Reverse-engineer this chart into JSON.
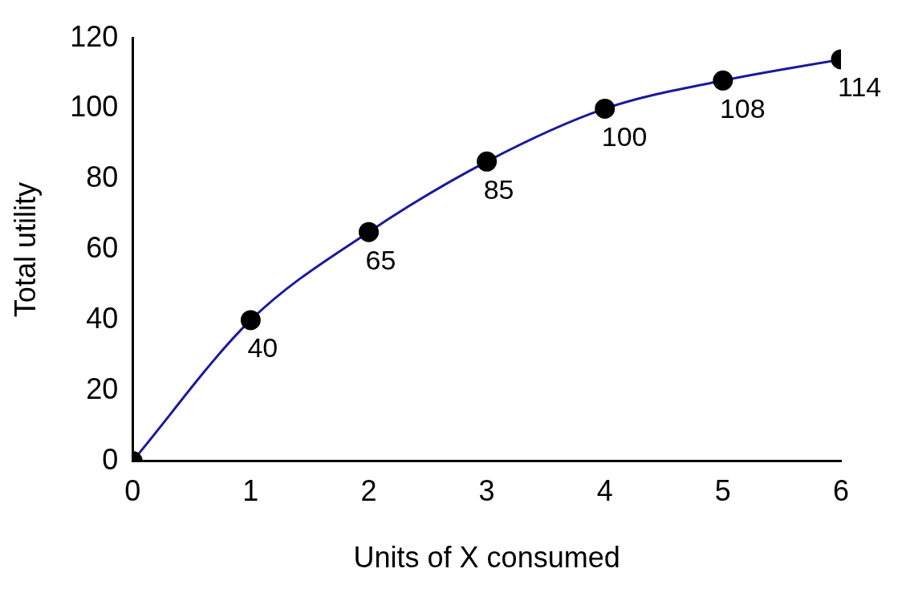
{
  "chart_data": {
    "type": "line",
    "xlabel": "Units of X consumed",
    "ylabel": "Total utility",
    "x": [
      0,
      1,
      2,
      3,
      4,
      5,
      6
    ],
    "series": [
      {
        "color": "#1a1a9c",
        "values": [
          0,
          40,
          65,
          85,
          100,
          108,
          114
        ],
        "value_labels": [
          null,
          "40",
          "65",
          "85",
          "100",
          "108",
          "114"
        ]
      }
    ],
    "xlim": [
      0,
      6
    ],
    "xticks": [
      0,
      1,
      2,
      3,
      4,
      5,
      6
    ],
    "ylim": [
      0,
      120
    ],
    "yticks": [
      0,
      20,
      40,
      60,
      80,
      100,
      120
    ],
    "grid": false,
    "legend": false,
    "marker": "circle",
    "line_style": "solid"
  }
}
